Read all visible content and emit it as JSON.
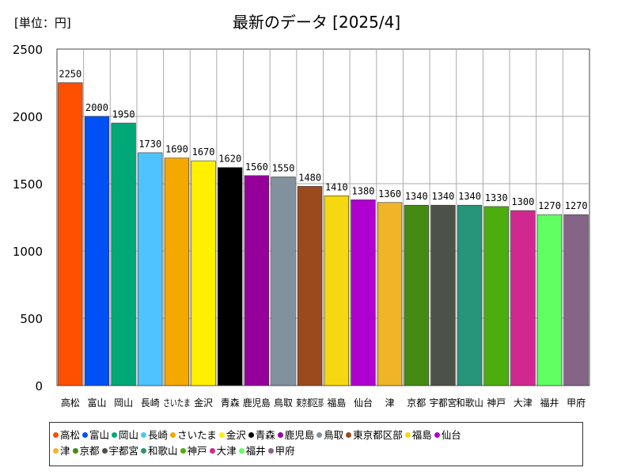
{
  "chart_data": {
    "type": "bar",
    "title": "最新のデータ [2025/4]",
    "unit_label": "[単位：円]",
    "ylim": [
      0,
      2500
    ],
    "yticks": [
      0,
      500,
      1000,
      1500,
      2000,
      2500
    ],
    "grid": true,
    "legend_position": "bottom",
    "categories": [
      "高松",
      "富山",
      "岡山",
      "長崎",
      "さいたま",
      "金沢",
      "青森",
      "鹿児島",
      "鳥取",
      "東京都区部",
      "福島",
      "仙台",
      "津",
      "京都",
      "宇都宮",
      "和歌山",
      "神戸",
      "大津",
      "福井",
      "甲府"
    ],
    "values": [
      2250,
      2000,
      1950,
      1730,
      1690,
      1670,
      1620,
      1560,
      1550,
      1480,
      1410,
      1380,
      1360,
      1340,
      1340,
      1340,
      1330,
      1300,
      1270,
      1270
    ],
    "colors": [
      "#ff4f00",
      "#0050f5",
      "#00a878",
      "#4fc3ff",
      "#f5a800",
      "#fff000",
      "#000000",
      "#96009a",
      "#82919e",
      "#9a4a1c",
      "#f5d80f",
      "#b000d0",
      "#f0b428",
      "#458a12",
      "#4d5248",
      "#26957a",
      "#4cae0e",
      "#d0288e",
      "#62ff62",
      "#866488"
    ]
  }
}
